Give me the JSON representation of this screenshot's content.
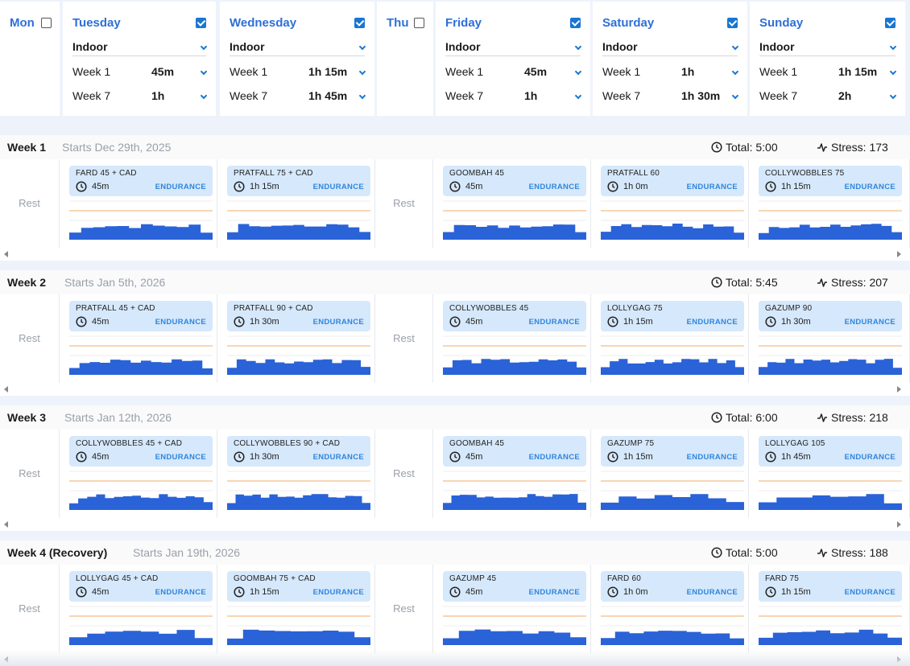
{
  "header": {
    "days": [
      {
        "name": "Mon",
        "checked": false
      },
      {
        "name": "Tuesday",
        "checked": true,
        "type": "Indoor",
        "rows": [
          {
            "label": "Week 1",
            "value": "45m"
          },
          {
            "label": "Week 7",
            "value": "1h"
          }
        ]
      },
      {
        "name": "Wednesday",
        "checked": true,
        "type": "Indoor",
        "rows": [
          {
            "label": "Week 1",
            "value": "1h 15m"
          },
          {
            "label": "Week 7",
            "value": "1h 45m"
          }
        ]
      },
      {
        "name": "Thu",
        "checked": false
      },
      {
        "name": "Friday",
        "checked": true,
        "type": "Indoor",
        "rows": [
          {
            "label": "Week 1",
            "value": "45m"
          },
          {
            "label": "Week 7",
            "value": "1h"
          }
        ]
      },
      {
        "name": "Saturday",
        "checked": true,
        "type": "Indoor",
        "rows": [
          {
            "label": "Week 1",
            "value": "1h"
          },
          {
            "label": "Week 7",
            "value": "1h 30m"
          }
        ]
      },
      {
        "name": "Sunday",
        "checked": true,
        "type": "Indoor",
        "rows": [
          {
            "label": "Week 1",
            "value": "1h 15m"
          },
          {
            "label": "Week 7",
            "value": "2h"
          }
        ]
      }
    ]
  },
  "rest_label": "Rest",
  "tag_label": "ENDURANCE",
  "weeks": [
    {
      "title": "Week 1",
      "starts": "Starts Dec 29th, 2025",
      "total": "Total: 5:00",
      "stress": "Stress: 173",
      "workouts": [
        {
          "name": "FARD 45 + CAD",
          "duration": "45m"
        },
        {
          "name": "PRATFALL 75 + CAD",
          "duration": "1h 15m"
        },
        {
          "name": "GOOMBAH 45",
          "duration": "45m"
        },
        {
          "name": "PRATFALL 60",
          "duration": "1h 0m"
        },
        {
          "name": "COLLYWOBBLES 75",
          "duration": "1h 15m"
        }
      ]
    },
    {
      "title": "Week 2",
      "starts": "Starts Jan 5th, 2026",
      "total": "Total: 5:45",
      "stress": "Stress: 207",
      "workouts": [
        {
          "name": "PRATFALL 45 + CAD",
          "duration": "45m"
        },
        {
          "name": "PRATFALL 90 + CAD",
          "duration": "1h 30m"
        },
        {
          "name": "COLLYWOBBLES 45",
          "duration": "45m"
        },
        {
          "name": "LOLLYGAG 75",
          "duration": "1h 15m"
        },
        {
          "name": "GAZUMP 90",
          "duration": "1h 30m"
        }
      ]
    },
    {
      "title": "Week 3",
      "starts": "Starts Jan 12th, 2026",
      "total": "Total: 6:00",
      "stress": "Stress: 218",
      "workouts": [
        {
          "name": "COLLYWOBBLES 45 + CAD",
          "duration": "45m"
        },
        {
          "name": "COLLYWOBBLES 90 + CAD",
          "duration": "1h 30m"
        },
        {
          "name": "GOOMBAH 45",
          "duration": "45m"
        },
        {
          "name": "GAZUMP 75",
          "duration": "1h 15m"
        },
        {
          "name": "LOLLYGAG 105",
          "duration": "1h 45m"
        }
      ]
    },
    {
      "title": "Week 4 (Recovery)",
      "starts": "Starts Jan 19th, 2026",
      "total": "Total: 5:00",
      "stress": "Stress: 188",
      "workouts": [
        {
          "name": "LOLLYGAG 45 + CAD",
          "duration": "45m"
        },
        {
          "name": "GOOMBAH 75 + CAD",
          "duration": "1h 15m"
        },
        {
          "name": "GAZUMP 45",
          "duration": "45m"
        },
        {
          "name": "FARD 60",
          "duration": "1h 0m"
        },
        {
          "name": "FARD 75",
          "duration": "1h 15m"
        }
      ]
    }
  ],
  "colors": {
    "accent": "#2e6fd8",
    "checkbox": "#1976d2",
    "card": "#d6e8fb",
    "profile": "#2a62d8",
    "threshold": "#f6c89a"
  }
}
